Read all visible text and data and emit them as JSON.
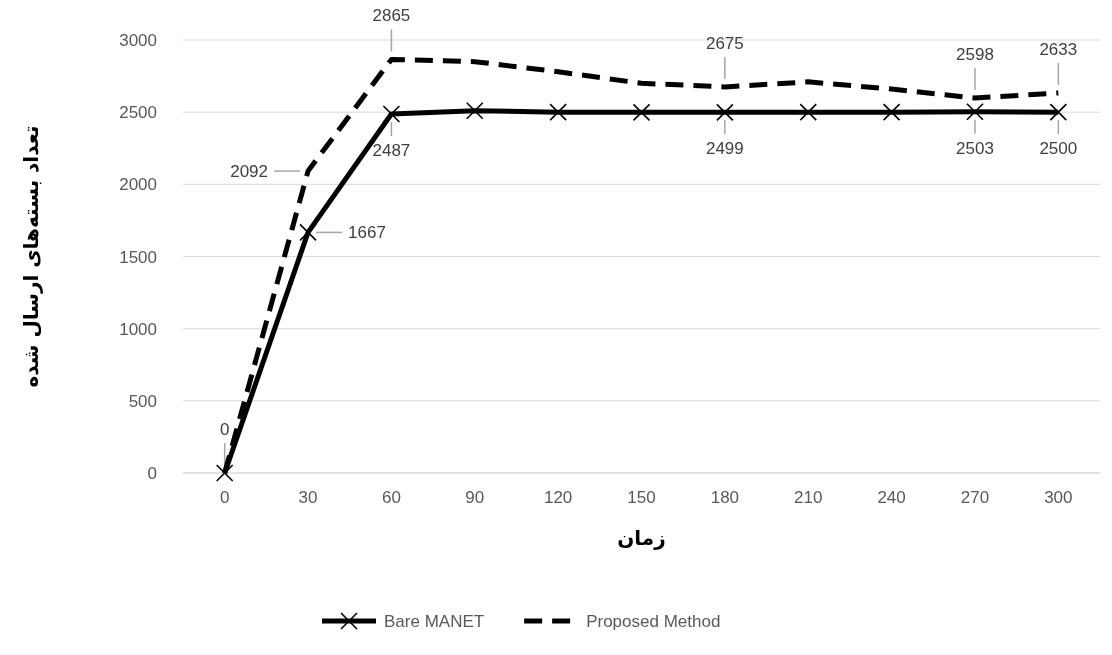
{
  "chart_data": {
    "type": "line",
    "xlabel": "زمان",
    "ylabel": "تعداد بسته‌های ارسال شده",
    "categories": [
      "0",
      "30",
      "60",
      "90",
      "120",
      "150",
      "180",
      "210",
      "240",
      "270",
      "300"
    ],
    "series": [
      {
        "name": "Bare MANET",
        "color": "#000000",
        "marker": "cross",
        "line_style": "solid",
        "values": [
          0,
          1667,
          2487,
          2510,
          2500,
          2499,
          2499,
          2500,
          2500,
          2503,
          2500
        ],
        "value_labels": [
          "0",
          "1667",
          "2487",
          null,
          null,
          null,
          "2499",
          null,
          null,
          "2503",
          "2500"
        ]
      },
      {
        "name": "Proposed Method",
        "color": "#000000",
        "marker": "none",
        "line_style": "dashed",
        "values": [
          0,
          2092,
          2865,
          2850,
          2780,
          2700,
          2675,
          2710,
          2660,
          2598,
          2633
        ],
        "value_labels": [
          null,
          "2092",
          "2865",
          null,
          null,
          null,
          "2675",
          null,
          null,
          "2598",
          "2633"
        ]
      }
    ],
    "ylim": [
      0,
      3000
    ],
    "yticks": [
      0,
      500,
      1000,
      1500,
      2000,
      2500,
      3000
    ],
    "grid": "y",
    "legend": "bottom"
  }
}
